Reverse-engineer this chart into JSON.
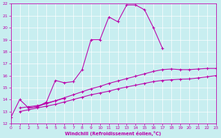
{
  "title": "",
  "xlabel": "Windchill (Refroidissement éolien,°C)",
  "xlim": [
    0,
    23
  ],
  "ylim": [
    12,
    22
  ],
  "xticks": [
    0,
    1,
    2,
    3,
    4,
    5,
    6,
    7,
    8,
    9,
    10,
    11,
    12,
    13,
    14,
    15,
    16,
    17,
    18,
    19,
    20,
    21,
    22,
    23
  ],
  "yticks": [
    12,
    13,
    14,
    15,
    16,
    17,
    18,
    19,
    20,
    21,
    22
  ],
  "bg_color": "#c8eef0",
  "line_color": "#bb00aa",
  "grid_color": "#ffffff",
  "line1_x": [
    0,
    1,
    2,
    3,
    4,
    5,
    6,
    7,
    8,
    9,
    10,
    11,
    12,
    13,
    14,
    15,
    16,
    17
  ],
  "line1_y": [
    12.5,
    14.0,
    13.3,
    13.4,
    13.8,
    15.6,
    15.4,
    15.5,
    16.5,
    19.0,
    19.0,
    20.9,
    20.5,
    21.9,
    21.9,
    21.5,
    20.0,
    18.3
  ],
  "line2_x": [
    1,
    2,
    3,
    4,
    5,
    6,
    7,
    8,
    9,
    10,
    11,
    12,
    13,
    14,
    15,
    16,
    17,
    18,
    19,
    20,
    21,
    22,
    23
  ],
  "line2_y": [
    13.3,
    13.4,
    13.5,
    13.65,
    13.9,
    14.15,
    14.4,
    14.65,
    14.9,
    15.1,
    15.35,
    15.55,
    15.75,
    15.95,
    16.15,
    16.35,
    16.5,
    16.55,
    16.5,
    16.5,
    16.55,
    16.6,
    16.6
  ],
  "line3_x": [
    1,
    2,
    3,
    4,
    5,
    6,
    7,
    8,
    9,
    10,
    11,
    12,
    13,
    14,
    15,
    16,
    17,
    18,
    19,
    20,
    21,
    22,
    23
  ],
  "line3_y": [
    13.0,
    13.15,
    13.3,
    13.45,
    13.6,
    13.8,
    14.0,
    14.2,
    14.4,
    14.55,
    14.7,
    14.9,
    15.05,
    15.2,
    15.35,
    15.5,
    15.6,
    15.65,
    15.7,
    15.72,
    15.8,
    15.9,
    16.0
  ],
  "line4_x": [
    2,
    3,
    4,
    5,
    6
  ],
  "line4_y": [
    13.3,
    13.4,
    13.7,
    13.9,
    14.1
  ]
}
